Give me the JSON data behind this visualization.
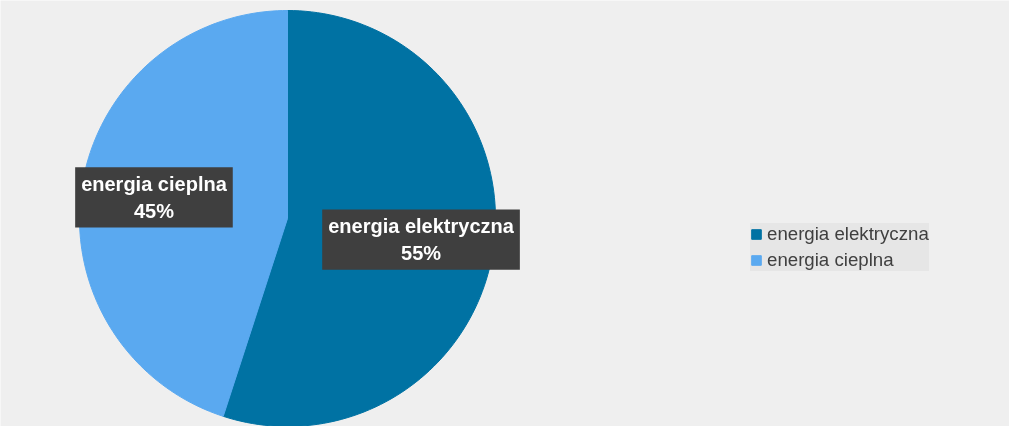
{
  "chart_data": {
    "type": "pie",
    "categories": [
      "energia elektryczna",
      "energia cieplna"
    ],
    "values": [
      55,
      45
    ],
    "colors": [
      "#0072a3",
      "#5aa9f0"
    ],
    "value_labels": [
      "55%",
      "45%"
    ],
    "data_labels": true,
    "legend": "right"
  }
}
